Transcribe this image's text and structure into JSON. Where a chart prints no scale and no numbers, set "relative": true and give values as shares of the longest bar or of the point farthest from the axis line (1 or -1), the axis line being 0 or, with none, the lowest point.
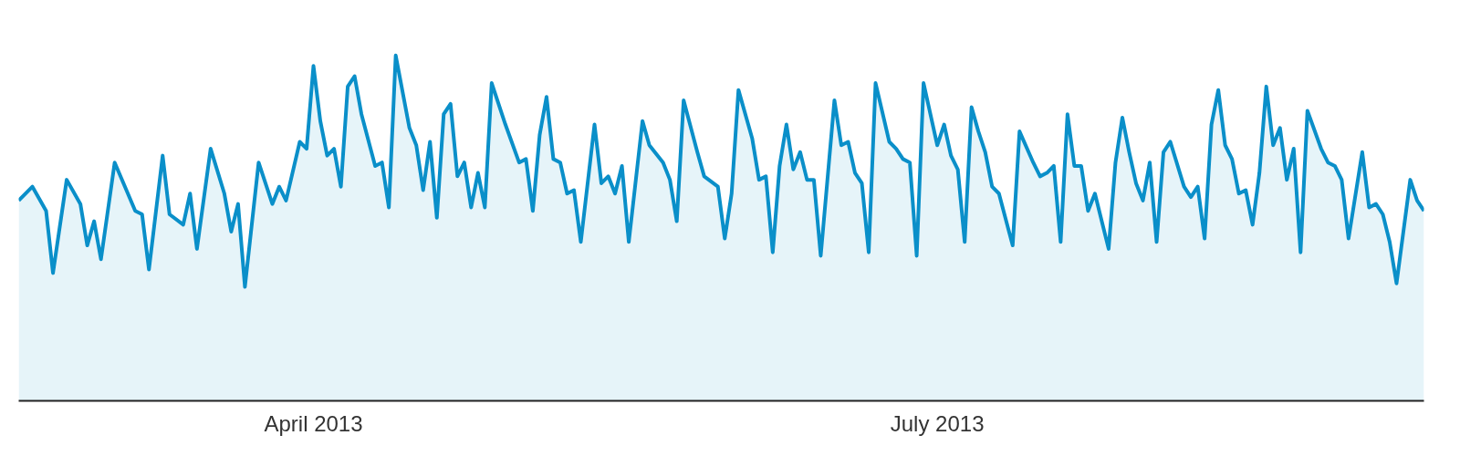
{
  "chart_data": {
    "type": "area",
    "relative": true,
    "xlim": [
      "2013-02-17",
      "2013-09-10"
    ],
    "xticks": [
      {
        "value": "2013-04-01",
        "label": "April 2013"
      },
      {
        "value": "2013-07-01",
        "label": "July 2013"
      }
    ],
    "series": [
      {
        "color": "#0a8fc9",
        "x": [
          "2013-02-17",
          "2013-02-19",
          "2013-02-21",
          "2013-02-22",
          "2013-02-24",
          "2013-02-26",
          "2013-02-27",
          "2013-02-28",
          "2013-03-01",
          "2013-03-03",
          "2013-03-06",
          "2013-03-07",
          "2013-03-08",
          "2013-03-10",
          "2013-03-11",
          "2013-03-13",
          "2013-03-14",
          "2013-03-15",
          "2013-03-17",
          "2013-03-19",
          "2013-03-20",
          "2013-03-21",
          "2013-03-22",
          "2013-03-24",
          "2013-03-26",
          "2013-03-27",
          "2013-03-28",
          "2013-03-30",
          "2013-03-31",
          "2013-04-01",
          "2013-04-02",
          "2013-04-03",
          "2013-04-04",
          "2013-04-05",
          "2013-04-06",
          "2013-04-07",
          "2013-04-08",
          "2013-04-10",
          "2013-04-11",
          "2013-04-12",
          "2013-04-13",
          "2013-04-15",
          "2013-04-16",
          "2013-04-17",
          "2013-04-18",
          "2013-04-19",
          "2013-04-20",
          "2013-04-21",
          "2013-04-22",
          "2013-04-23",
          "2013-04-24",
          "2013-04-25",
          "2013-04-26",
          "2013-04-27",
          "2013-04-29",
          "2013-05-01",
          "2013-05-02",
          "2013-05-03",
          "2013-05-04",
          "2013-05-05",
          "2013-05-06",
          "2013-05-07",
          "2013-05-08",
          "2013-05-09",
          "2013-05-10",
          "2013-05-12",
          "2013-05-13",
          "2013-05-14",
          "2013-05-15",
          "2013-05-16",
          "2013-05-17",
          "2013-05-19",
          "2013-05-20",
          "2013-05-22",
          "2013-05-23",
          "2013-05-24",
          "2013-05-25",
          "2013-05-27",
          "2013-05-28",
          "2013-05-30",
          "2013-05-31",
          "2013-06-01",
          "2013-06-02",
          "2013-06-04",
          "2013-06-05",
          "2013-06-06",
          "2013-06-07",
          "2013-06-08",
          "2013-06-09",
          "2013-06-10",
          "2013-06-11",
          "2013-06-12",
          "2013-06-13",
          "2013-06-14",
          "2013-06-16",
          "2013-06-17",
          "2013-06-18",
          "2013-06-19",
          "2013-06-20",
          "2013-06-21",
          "2013-06-22",
          "2013-06-24",
          "2013-06-25",
          "2013-06-26",
          "2013-06-27",
          "2013-06-28",
          "2013-06-29",
          "2013-07-01",
          "2013-07-02",
          "2013-07-03",
          "2013-07-04",
          "2013-07-05",
          "2013-07-06",
          "2013-07-07",
          "2013-07-08",
          "2013-07-09",
          "2013-07-10",
          "2013-07-12",
          "2013-07-13",
          "2013-07-15",
          "2013-07-16",
          "2013-07-17",
          "2013-07-18",
          "2013-07-19",
          "2013-07-20",
          "2013-07-21",
          "2013-07-22",
          "2013-07-23",
          "2013-07-24",
          "2013-07-26",
          "2013-07-27",
          "2013-07-28",
          "2013-07-29",
          "2013-07-30",
          "2013-07-31",
          "2013-08-01",
          "2013-08-02",
          "2013-08-03",
          "2013-08-04",
          "2013-08-06",
          "2013-08-07",
          "2013-08-08",
          "2013-08-09",
          "2013-08-10",
          "2013-08-11",
          "2013-08-12",
          "2013-08-13",
          "2013-08-14",
          "2013-08-15",
          "2013-08-16",
          "2013-08-17",
          "2013-08-18",
          "2013-08-19",
          "2013-08-20",
          "2013-08-21",
          "2013-08-22",
          "2013-08-23",
          "2013-08-24",
          "2013-08-26",
          "2013-08-27",
          "2013-08-28",
          "2013-08-29",
          "2013-08-30",
          "2013-09-01",
          "2013-09-02",
          "2013-09-03",
          "2013-09-04",
          "2013-09-05",
          "2013-09-06",
          "2013-09-08",
          "2013-09-09",
          "2013-09-10"
        ],
        "values": [
          0.58,
          0.62,
          0.55,
          0.37,
          0.64,
          0.57,
          0.45,
          0.52,
          0.41,
          0.69,
          0.55,
          0.54,
          0.38,
          0.71,
          0.54,
          0.51,
          0.6,
          0.44,
          0.73,
          0.6,
          0.49,
          0.57,
          0.33,
          0.69,
          0.57,
          0.62,
          0.58,
          0.75,
          0.73,
          0.97,
          0.81,
          0.71,
          0.73,
          0.62,
          0.91,
          0.94,
          0.83,
          0.68,
          0.69,
          0.56,
          1,
          0.79,
          0.74,
          0.61,
          0.75,
          0.53,
          0.83,
          0.86,
          0.65,
          0.69,
          0.56,
          0.66,
          0.56,
          0.92,
          0.8,
          0.69,
          0.7,
          0.55,
          0.77,
          0.88,
          0.7,
          0.69,
          0.6,
          0.61,
          0.46,
          0.8,
          0.63,
          0.65,
          0.6,
          0.68,
          0.46,
          0.81,
          0.74,
          0.69,
          0.64,
          0.52,
          0.87,
          0.72,
          0.65,
          0.62,
          0.47,
          0.6,
          0.9,
          0.76,
          0.64,
          0.65,
          0.43,
          0.68,
          0.8,
          0.67,
          0.72,
          0.64,
          0.64,
          0.42,
          0.87,
          0.74,
          0.75,
          0.66,
          0.63,
          0.43,
          0.92,
          0.75,
          0.73,
          0.7,
          0.69,
          0.42,
          0.92,
          0.74,
          0.8,
          0.71,
          0.67,
          0.46,
          0.85,
          0.78,
          0.72,
          0.62,
          0.6,
          0.45,
          0.78,
          0.69,
          0.65,
          0.66,
          0.68,
          0.46,
          0.83,
          0.68,
          0.68,
          0.55,
          0.6,
          0.44,
          0.69,
          0.82,
          0.72,
          0.63,
          0.58,
          0.69,
          0.46,
          0.72,
          0.75,
          0.62,
          0.59,
          0.62,
          0.47,
          0.8,
          0.9,
          0.74,
          0.7,
          0.6,
          0.61,
          0.51,
          0.66,
          0.91,
          0.74,
          0.79,
          0.64,
          0.73,
          0.43,
          0.84,
          0.73,
          0.69,
          0.68,
          0.64,
          0.47,
          0.72,
          0.56,
          0.57,
          0.54,
          0.46,
          0.34,
          0.64,
          0.58,
          0.55
        ]
      }
    ]
  }
}
